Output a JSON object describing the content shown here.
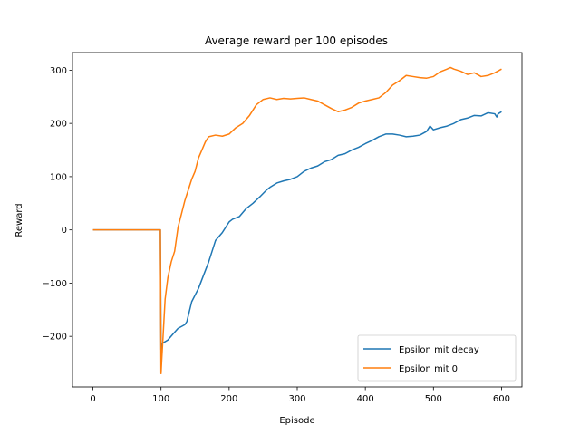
{
  "chart_data": {
    "type": "line",
    "title": "Average reward per 100 episodes",
    "xlabel": "Episode",
    "ylabel": "Reward",
    "xlim": [
      -30,
      630
    ],
    "ylim": [
      -295,
      333
    ],
    "xticks": [
      0,
      100,
      200,
      300,
      400,
      500,
      600
    ],
    "yticks": [
      -200,
      -100,
      0,
      100,
      200,
      300
    ],
    "xtick_labels": [
      "0",
      "100",
      "200",
      "300",
      "400",
      "500",
      "600"
    ],
    "ytick_labels": [
      "−200",
      "−100",
      "0",
      "100",
      "200",
      "300"
    ],
    "legend": {
      "position": "bottom-right"
    },
    "series": [
      {
        "name": "Epsilon mit decay",
        "color": "#1f77b4",
        "x": [
          0,
          99,
          100,
          102,
          110,
          118,
          125,
          135,
          138,
          145,
          155,
          170,
          180,
          190,
          200,
          205,
          215,
          225,
          235,
          245,
          255,
          260,
          270,
          280,
          290,
          300,
          310,
          320,
          330,
          340,
          350,
          360,
          370,
          380,
          390,
          400,
          410,
          420,
          430,
          440,
          450,
          460,
          470,
          480,
          490,
          495,
          500,
          510,
          520,
          530,
          540,
          550,
          560,
          570,
          580,
          590,
          593,
          595,
          600
        ],
        "y": [
          0,
          0,
          -225,
          -213,
          -207,
          -195,
          -185,
          -178,
          -172,
          -135,
          -110,
          -60,
          -20,
          -5,
          15,
          20,
          25,
          40,
          50,
          62,
          75,
          80,
          88,
          92,
          95,
          100,
          110,
          116,
          120,
          128,
          132,
          140,
          143,
          150,
          155,
          162,
          168,
          175,
          180,
          180,
          178,
          175,
          176,
          178,
          185,
          195,
          188,
          192,
          195,
          200,
          207,
          210,
          215,
          214,
          220,
          218,
          212,
          218,
          222
        ]
      },
      {
        "name": "Epsilon mit 0",
        "color": "#ff7f0e",
        "x": [
          0,
          99,
          100,
          101,
          103,
          106,
          110,
          115,
          120,
          125,
          130,
          135,
          140,
          145,
          150,
          155,
          160,
          165,
          170,
          180,
          190,
          200,
          210,
          220,
          230,
          240,
          250,
          260,
          270,
          280,
          290,
          300,
          310,
          320,
          330,
          340,
          350,
          360,
          370,
          380,
          390,
          400,
          410,
          420,
          430,
          440,
          450,
          460,
          470,
          480,
          490,
          500,
          510,
          520,
          525,
          530,
          540,
          550,
          560,
          570,
          580,
          590,
          600
        ],
        "y": [
          0,
          0,
          -270,
          -245,
          -200,
          -130,
          -90,
          -60,
          -40,
          5,
          30,
          55,
          75,
          95,
          110,
          135,
          150,
          165,
          175,
          178,
          176,
          180,
          192,
          200,
          215,
          235,
          245,
          248,
          245,
          247,
          246,
          247,
          248,
          245,
          242,
          235,
          228,
          222,
          225,
          230,
          238,
          242,
          245,
          248,
          258,
          272,
          280,
          290,
          288,
          286,
          285,
          288,
          297,
          302,
          305,
          302,
          298,
          292,
          295,
          288,
          290,
          295,
          302
        ]
      }
    ]
  }
}
